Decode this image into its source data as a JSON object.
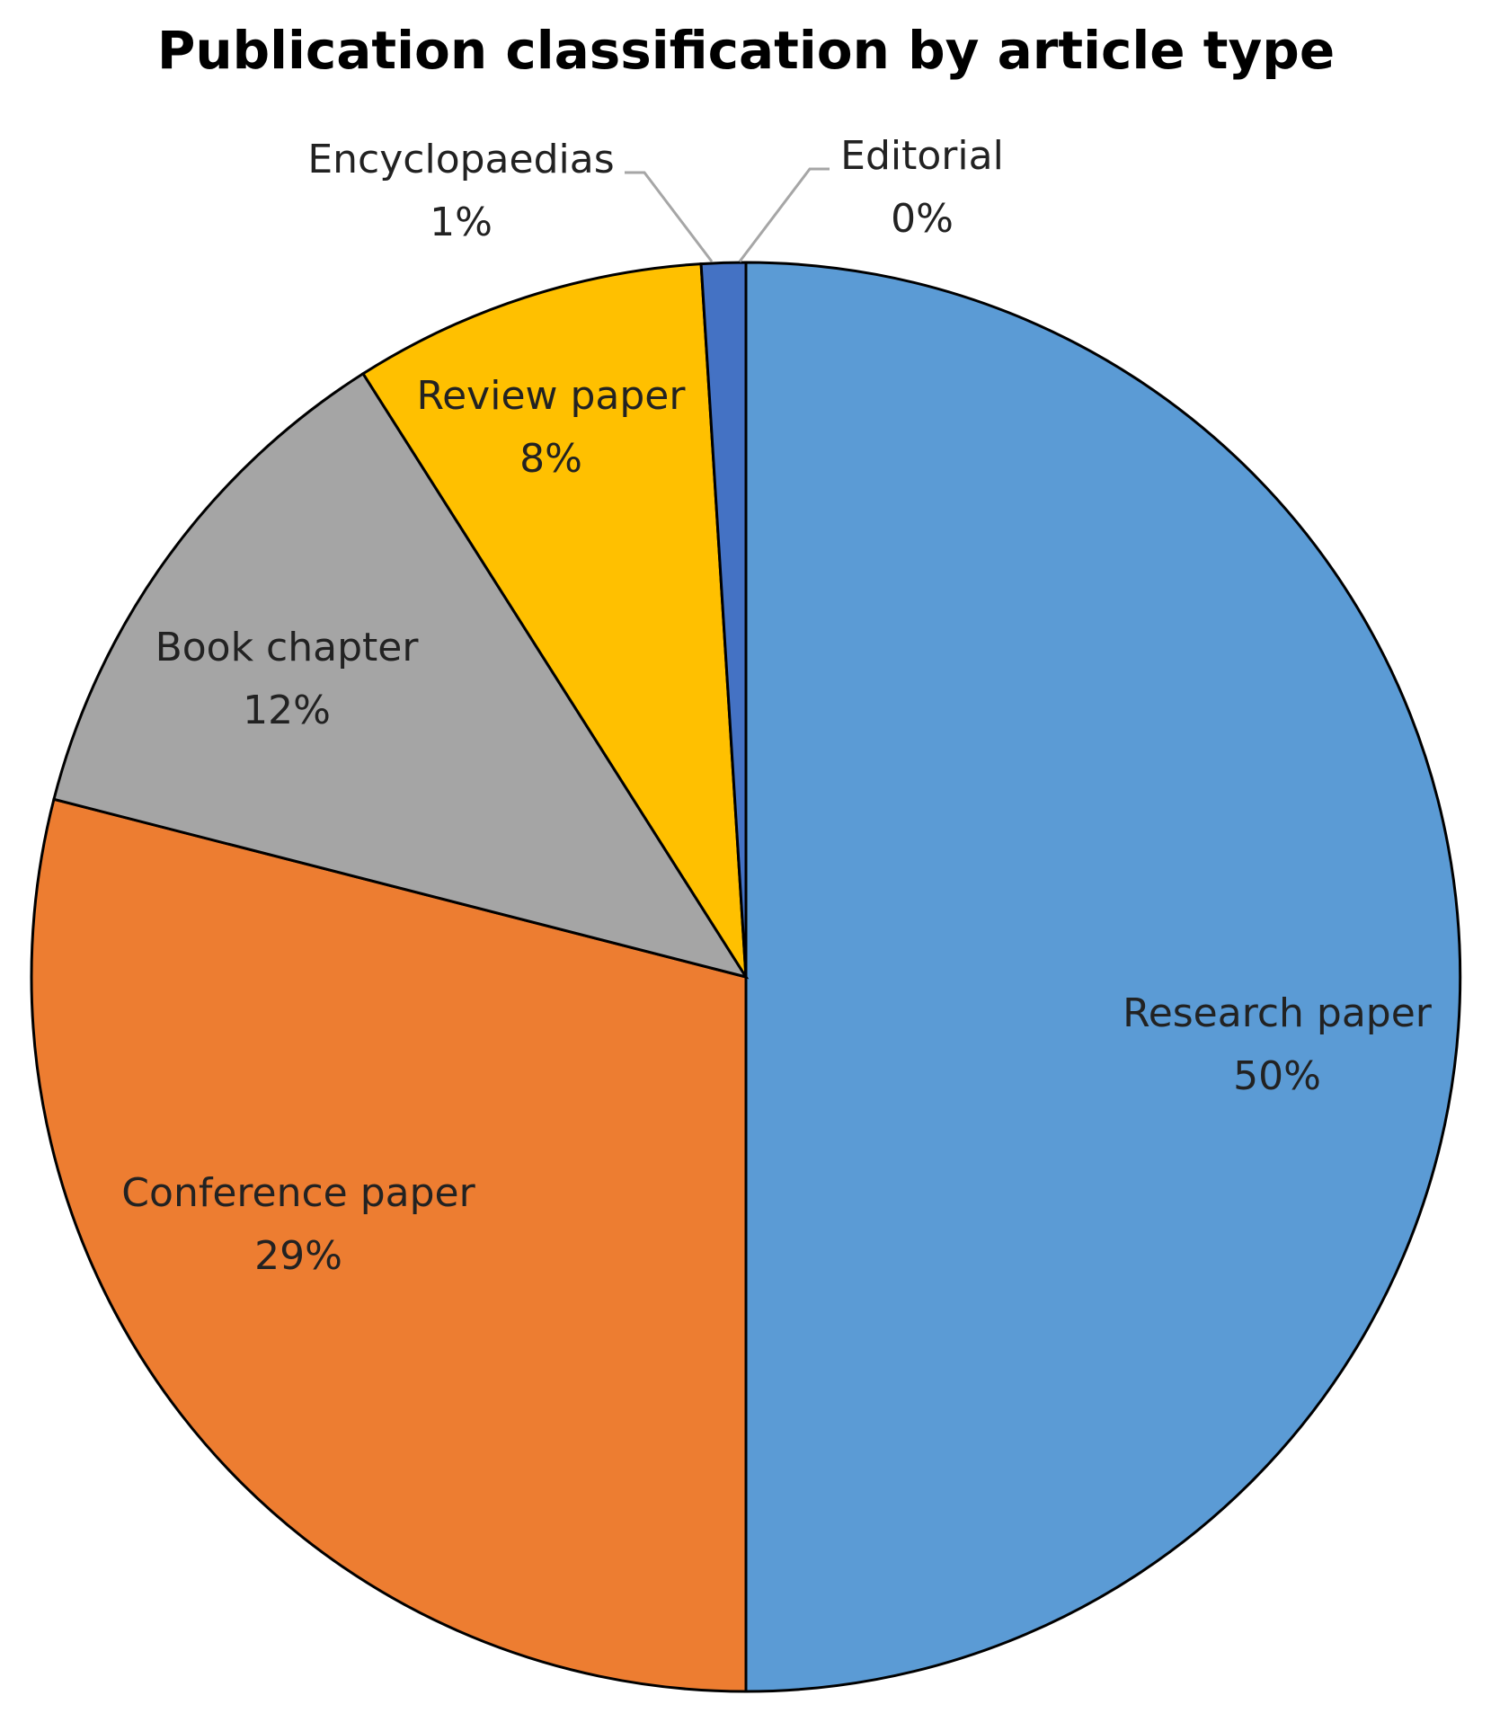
{
  "chart_data": {
    "type": "pie",
    "title": "Publication classification by article type",
    "categories": [
      "Research paper",
      "Conference paper",
      "Book chapter",
      "Review paper",
      "Encyclopaedias",
      "Editorial"
    ],
    "values": [
      50,
      29,
      12,
      8,
      1,
      0
    ],
    "value_labels": [
      "50%",
      "29%",
      "12%",
      "8%",
      "1%",
      "0%"
    ],
    "colors": [
      "#5b9bd5",
      "#ed7d31",
      "#a5a5a5",
      "#ffc000",
      "#4472c4",
      "#70ad47"
    ]
  }
}
